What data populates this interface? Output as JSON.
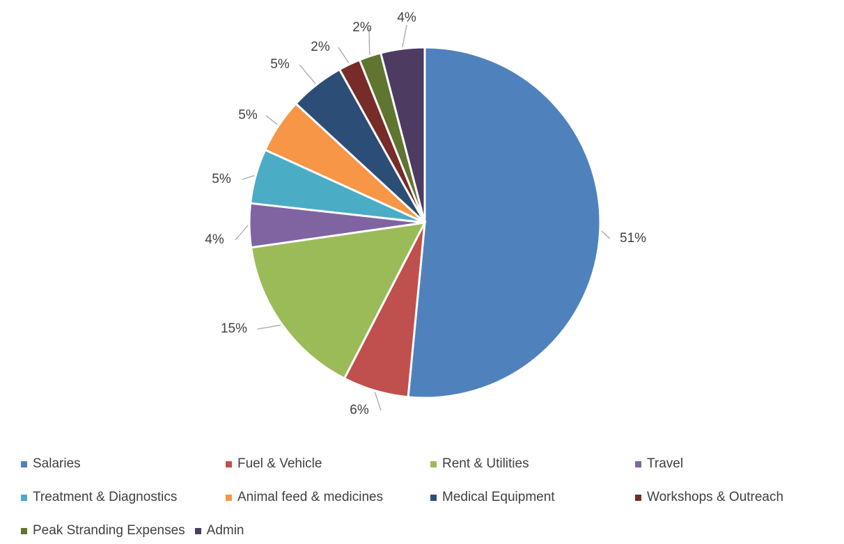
{
  "chart_data": {
    "type": "pie",
    "title": "",
    "start_angle_deg": 0,
    "direction": "clockwise",
    "legend_placement": "bottom",
    "slices": [
      {
        "name": "Salaries",
        "value": 51,
        "label": "51%",
        "color": "#4f81bd"
      },
      {
        "name": "Fuel & Vehicle",
        "value": 6,
        "label": "6%",
        "color": "#c0504d"
      },
      {
        "name": "Rent & Utilities",
        "value": 15,
        "label": "15%",
        "color": "#9bbb59"
      },
      {
        "name": "Travel",
        "value": 4,
        "label": "4%",
        "color": "#8064a2"
      },
      {
        "name": "Treatment & Diagnostics",
        "value": 5,
        "label": "5%",
        "color": "#4bacc6"
      },
      {
        "name": "Animal feed & medicines",
        "value": 5,
        "label": "5%",
        "color": "#f79646"
      },
      {
        "name": "Medical Equipment",
        "value": 5,
        "label": "5%",
        "color": "#2c4d75"
      },
      {
        "name": "Workshops & Outreach",
        "value": 2,
        "label": "2%",
        "color": "#772c2a"
      },
      {
        "name": "Peak Stranding Expenses",
        "value": 2,
        "label": "2%",
        "color": "#5f7530"
      },
      {
        "name": "Admin",
        "value": 4,
        "label": "4%",
        "color": "#4d3b62"
      }
    ]
  }
}
